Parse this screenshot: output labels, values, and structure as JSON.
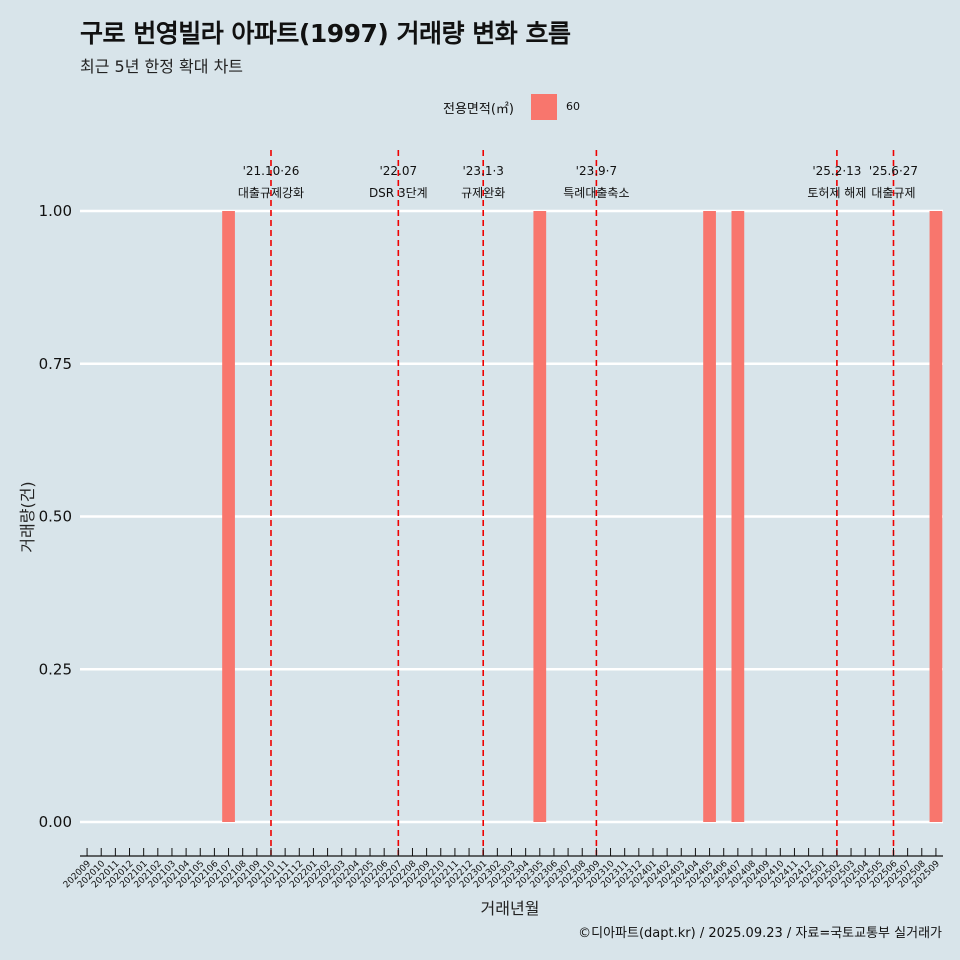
{
  "title": "구로 번영빌라 아파트(1997) 거래량 변화 흐름",
  "subtitle": "최근 5년 한정 확대 차트",
  "legend": {
    "title": "전용면적(㎡)",
    "label": "60",
    "color": "#f8766d"
  },
  "caption": "©디아파트(dapt.kr) / 2025.09.23 / 자료=국토교통부 실거래가",
  "chart_data": {
    "type": "bar",
    "xlabel": "거래년월",
    "ylabel": "거래량(건)",
    "ylim": [
      0,
      1
    ],
    "y_ticks": [
      "0.00",
      "0.25",
      "0.50",
      "0.75",
      "1.00"
    ],
    "categories": [
      "202009",
      "202010",
      "202011",
      "202012",
      "202101",
      "202102",
      "202103",
      "202104",
      "202105",
      "202106",
      "202107",
      "202108",
      "202109",
      "202110",
      "202111",
      "202112",
      "202201",
      "202202",
      "202203",
      "202204",
      "202205",
      "202206",
      "202207",
      "202208",
      "202209",
      "202210",
      "202211",
      "202212",
      "202301",
      "202302",
      "202303",
      "202304",
      "202305",
      "202306",
      "202307",
      "202308",
      "202309",
      "202310",
      "202311",
      "202312",
      "202401",
      "202402",
      "202403",
      "202404",
      "202405",
      "202406",
      "202407",
      "202408",
      "202409",
      "202410",
      "202411",
      "202412",
      "202501",
      "202502",
      "202503",
      "202504",
      "202505",
      "202506",
      "202507",
      "202508",
      "202509"
    ],
    "series": [
      {
        "name": "60",
        "color": "#f8766d",
        "values": [
          0,
          0,
          0,
          0,
          0,
          0,
          0,
          0,
          0,
          0,
          1,
          0,
          0,
          0,
          0,
          0,
          0,
          0,
          0,
          0,
          0,
          0,
          0,
          0,
          0,
          0,
          0,
          0,
          0,
          0,
          0,
          0,
          1,
          0,
          0,
          0,
          0,
          0,
          0,
          0,
          0,
          0,
          0,
          0,
          1,
          0,
          1,
          0,
          0,
          0,
          0,
          0,
          0,
          0,
          0,
          0,
          0,
          0,
          0,
          0,
          1
        ]
      }
    ],
    "annotations": [
      {
        "category": "202110",
        "line1": "'21.10·26",
        "line2": "대출규제강화"
      },
      {
        "category": "202207",
        "line1": "'22.07",
        "line2": "DSR 3단계"
      },
      {
        "category": "202301",
        "line1": "'23.1·3",
        "line2": "규제완화"
      },
      {
        "category": "202309",
        "line1": "'23.9·7",
        "line2": "특례대출축소"
      },
      {
        "category": "202502",
        "line1": "'25.2·13",
        "line2": "토허제 해제"
      },
      {
        "category": "202506",
        "line1": "'25.6·27",
        "line2": "대출규제"
      }
    ]
  }
}
